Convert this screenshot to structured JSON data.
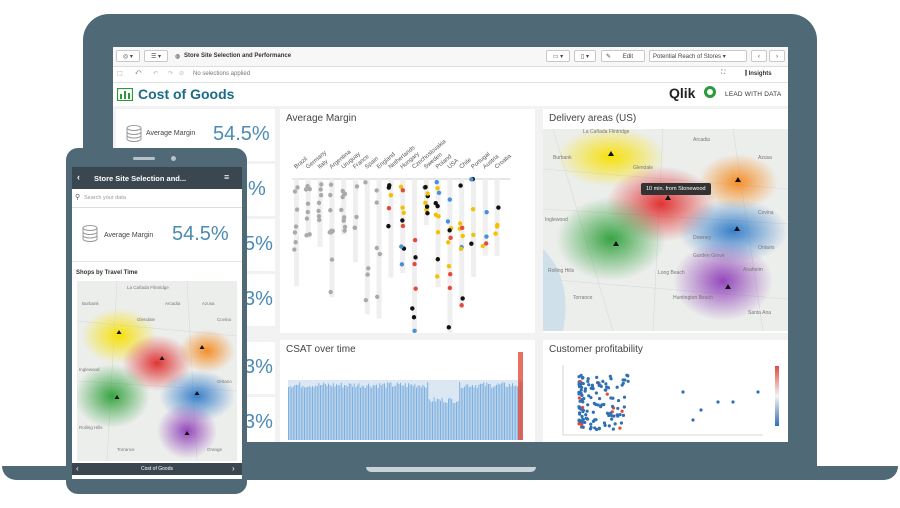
{
  "toolbar": {
    "app_title": "Store Site Selection and Performance",
    "edit_label": "Edit",
    "sheet_name": "Potential Reach of Stores",
    "insights_label": "Insights"
  },
  "selections": {
    "placeholder": "No selections applied"
  },
  "sheet": {
    "title": "Cost of Goods",
    "brand": "Qlik",
    "tagline": "LEAD WITH DATA"
  },
  "kpis": [
    {
      "label": "Average Margin",
      "value": "54.5%"
    },
    {
      "value": "%"
    },
    {
      "value": "5%"
    },
    {
      "value": "3%"
    },
    {
      "value": "3%"
    },
    {
      "value": "3%"
    }
  ],
  "panels": {
    "average_margin": {
      "title": "Average Margin"
    },
    "delivery": {
      "title": "Delivery areas (US)",
      "tooltip": "10 min. from Stonewood"
    },
    "csat": {
      "title": "CSAT over time"
    },
    "profit": {
      "title": "Customer profitability"
    }
  },
  "map_labels": [
    "La Cañada Flintridge",
    "Burbank",
    "Arcadia",
    "Azusa",
    "Glendale",
    "Covina",
    "Inglewood",
    "Downey",
    "Ontario",
    "Rolling Hills",
    "Garden Grove",
    "Long Beach",
    "Huntington Beach",
    "Anaheim",
    "Santa Ana",
    "Torrance"
  ],
  "phone": {
    "title": "Store Site Selection and...",
    "search_placeholder": "Search your data",
    "kpi_label": "Average Margin",
    "kpi_value": "54.5%",
    "chart_title": "Shops by Travel Time",
    "map_labels": [
      "La Cañada Flintridge",
      "Burbank",
      "Arcadia",
      "Azusa",
      "Glendale",
      "Covina",
      "Inglewood",
      "Ontario",
      "Rolling Hills",
      "Torrance",
      "Orange"
    ],
    "footer": "Cost of Goods"
  },
  "chart_data": [
    {
      "type": "scatter",
      "title": "Average Margin",
      "categories": [
        "Brazil",
        "Germany",
        "Italy",
        "Argentina",
        "Uruguay",
        "France",
        "Spain",
        "England",
        "Netherlands",
        "Hungary",
        "Czechoslovakia",
        "Sweden",
        "Poland",
        "USA",
        "Chile",
        "Portugal",
        "Austria",
        "Croatia"
      ]
    },
    {
      "type": "area",
      "title": "CSAT over time"
    },
    {
      "type": "scatter",
      "title": "Customer profitability"
    }
  ],
  "colors": {
    "accent": "#4a8bb5",
    "title": "#1a6b8a",
    "frame": "#4f6a76",
    "red": "#e24b3b",
    "yellow": "#f2c200"
  }
}
